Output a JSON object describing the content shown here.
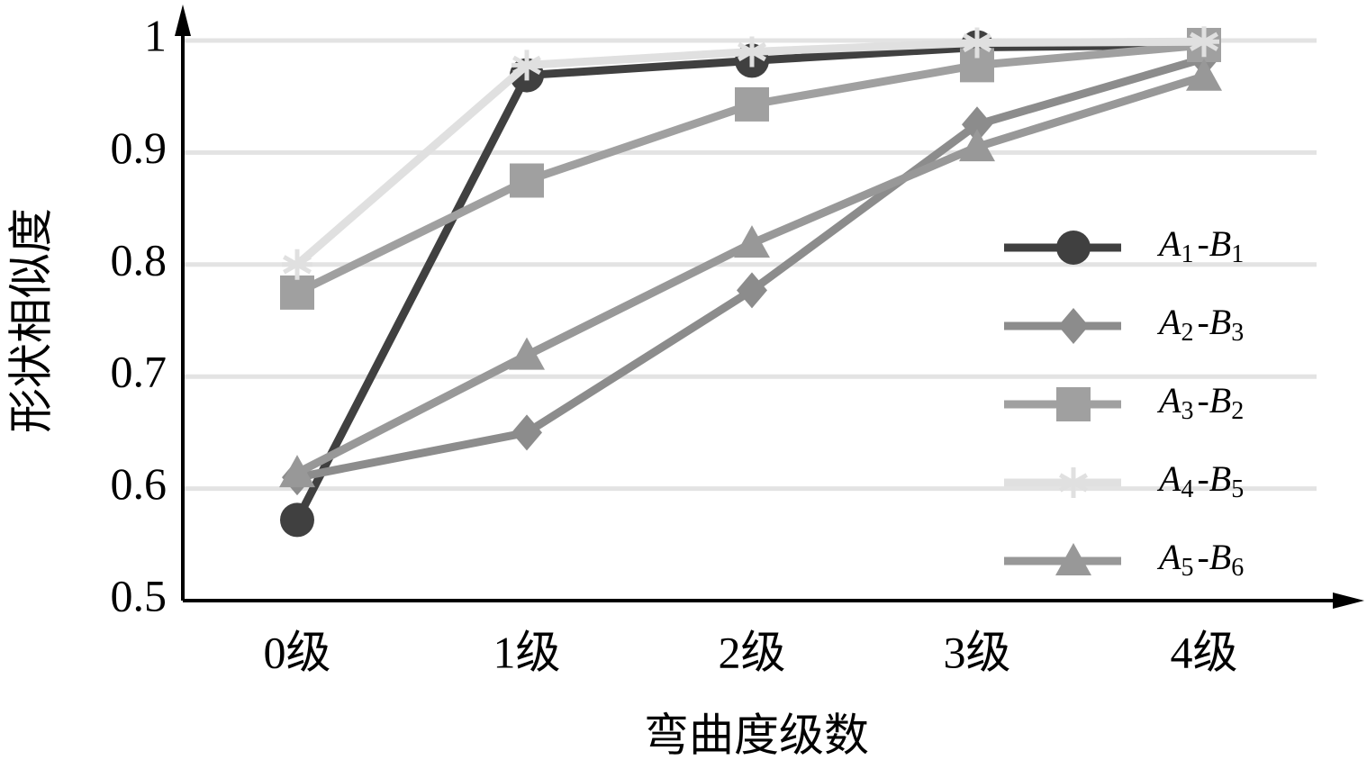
{
  "chart_data": {
    "type": "line",
    "x_label": "弯曲度级数",
    "y_label": "形状相似度",
    "categories": [
      "0级",
      "1级",
      "2级",
      "3级",
      "4级"
    ],
    "series": [
      {
        "name": "A1-B1",
        "color": "#404040",
        "marker": "circle",
        "values": [
          0.572,
          0.969,
          0.982,
          0.994,
          0.996
        ]
      },
      {
        "name": "A2-B3",
        "color": "#8c8c8c",
        "marker": "diamond",
        "values": [
          0.61,
          0.65,
          0.777,
          0.925,
          0.984
        ]
      },
      {
        "name": "A3-B2",
        "color": "#a0a0a0",
        "marker": "square",
        "values": [
          0.775,
          0.875,
          0.943,
          0.978,
          0.996
        ]
      },
      {
        "name": "A4-B5",
        "color": "#e0e0e0",
        "marker": "star",
        "values": [
          0.8,
          0.978,
          0.99,
          0.998,
          0.999
        ]
      },
      {
        "name": "A5-B6",
        "color": "#989898",
        "marker": "triangle",
        "values": [
          0.614,
          0.719,
          0.819,
          0.905,
          0.968
        ]
      }
    ],
    "ylim": [
      0.5,
      1
    ],
    "yticks": [
      0.5,
      0.6,
      0.7,
      0.8,
      0.9,
      1
    ],
    "grid": true,
    "legend": "right"
  }
}
